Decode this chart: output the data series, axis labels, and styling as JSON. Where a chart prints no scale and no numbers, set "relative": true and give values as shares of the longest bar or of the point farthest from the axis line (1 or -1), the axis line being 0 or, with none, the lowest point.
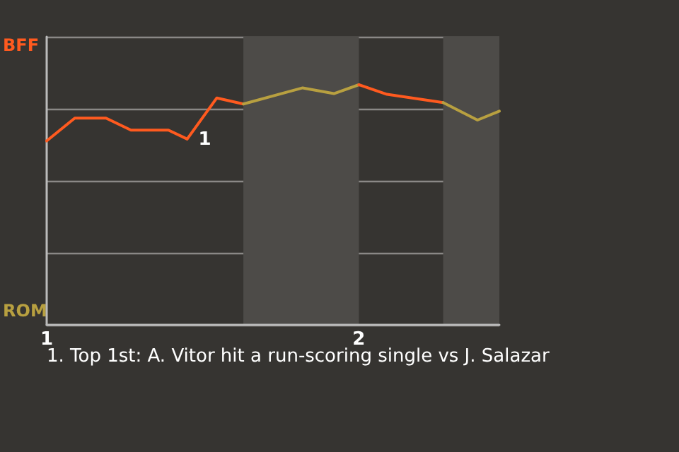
{
  "chart_data": {
    "type": "line",
    "relative": true,
    "series": [
      {
        "color": "#ff5a1f",
        "x": [
          1.0,
          1.09,
          1.19,
          1.27,
          1.39,
          1.45,
          1.545,
          1.63
        ],
        "values": [
          0.766,
          0.861,
          0.861,
          0.811,
          0.811,
          0.774,
          0.945,
          0.92
        ]
      },
      {
        "color": "#b8a040",
        "x": [
          1.63,
          1.82,
          1.92,
          2.0
        ],
        "values": [
          0.92,
          0.987,
          0.963,
          1
        ]
      },
      {
        "color": "#ff5a1f",
        "x": [
          2.0,
          2.09,
          2.27
        ],
        "values": [
          1,
          0.96,
          0.926
        ]
      },
      {
        "color": "#b8a040",
        "x": [
          2.27,
          2.38,
          2.45
        ],
        "values": [
          0.926,
          0.853,
          0.89
        ]
      }
    ],
    "xlim": [
      1,
      2.45
    ],
    "xticks": [
      1,
      2
    ],
    "bands": [
      {
        "axis": "x",
        "from": 1.63,
        "to": 2.0,
        "color": "#4d4b48"
      },
      {
        "axis": "x",
        "from": 2.27,
        "to": 2.45,
        "color": "#4d4b48"
      }
    ],
    "annotations": [
      {
        "text": "1",
        "x": 1.45,
        "y": 0.774
      },
      "BFF",
      "ROM",
      "1. Top 1st: A. Vitor hit a run-scoring single vs J. Salazar"
    ],
    "grid": "y",
    "marker": "none",
    "line_style": "solid"
  }
}
